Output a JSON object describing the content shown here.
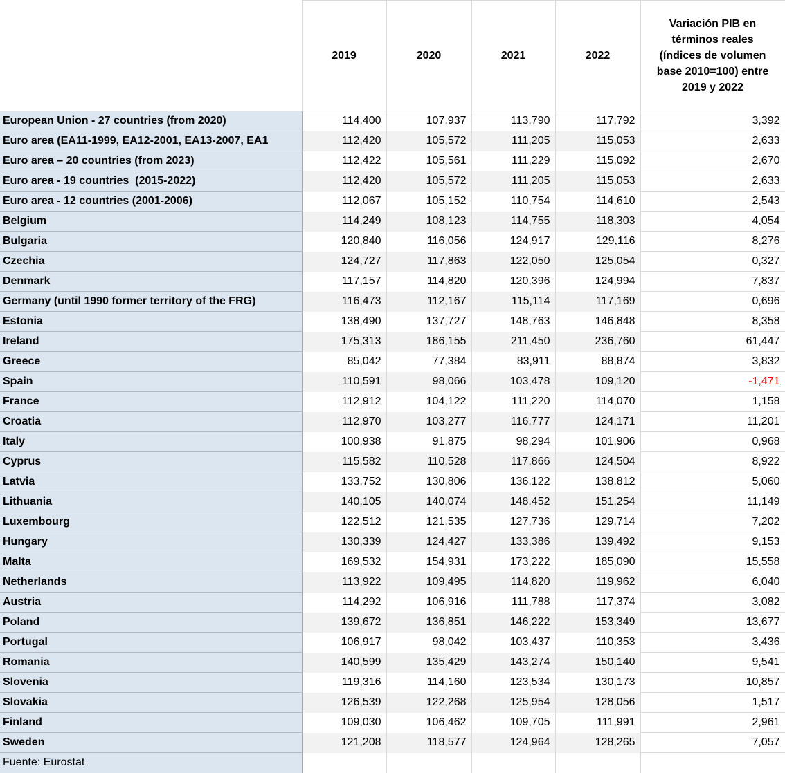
{
  "table": {
    "corner_label": "",
    "year_headers": [
      "2019",
      "2020",
      "2021",
      "2022"
    ],
    "variation_header": "Variación PIB en términos reales (índices de volumen base 2010=100) entre 2019 y 2022",
    "footer": "Fuente: Eurostat",
    "rows": [
      {
        "label": "European Union - 27 countries (from 2020)",
        "values": [
          "114,400",
          "107,937",
          "113,790",
          "117,792"
        ],
        "variation": "3,392"
      },
      {
        "label": "Euro area (EA11-1999, EA12-2001, EA13-2007, EA1",
        "values": [
          "112,420",
          "105,572",
          "111,205",
          "115,053"
        ],
        "variation": "2,633"
      },
      {
        "label": "Euro area – 20 countries (from 2023)",
        "values": [
          "112,422",
          "105,561",
          "111,229",
          "115,092"
        ],
        "variation": "2,670"
      },
      {
        "label": "Euro area - 19 countries  (2015-2022)",
        "values": [
          "112,420",
          "105,572",
          "111,205",
          "115,053"
        ],
        "variation": "2,633"
      },
      {
        "label": "Euro area - 12 countries (2001-2006)",
        "values": [
          "112,067",
          "105,152",
          "110,754",
          "114,610"
        ],
        "variation": "2,543"
      },
      {
        "label": "Belgium",
        "values": [
          "114,249",
          "108,123",
          "114,755",
          "118,303"
        ],
        "variation": "4,054"
      },
      {
        "label": "Bulgaria",
        "values": [
          "120,840",
          "116,056",
          "124,917",
          "129,116"
        ],
        "variation": "8,276"
      },
      {
        "label": "Czechia",
        "values": [
          "124,727",
          "117,863",
          "122,050",
          "125,054"
        ],
        "variation": "0,327"
      },
      {
        "label": "Denmark",
        "values": [
          "117,157",
          "114,820",
          "120,396",
          "124,994"
        ],
        "variation": "7,837"
      },
      {
        "label": "Germany (until 1990 former territory of the FRG)",
        "values": [
          "116,473",
          "112,167",
          "115,114",
          "117,169"
        ],
        "variation": "0,696"
      },
      {
        "label": "Estonia",
        "values": [
          "138,490",
          "137,727",
          "148,763",
          "146,848"
        ],
        "variation": "8,358"
      },
      {
        "label": "Ireland",
        "values": [
          "175,313",
          "186,155",
          "211,450",
          "236,760"
        ],
        "variation": "61,447"
      },
      {
        "label": "Greece",
        "values": [
          "85,042",
          "77,384",
          "83,911",
          "88,874"
        ],
        "variation": "3,832"
      },
      {
        "label": "Spain",
        "values": [
          "110,591",
          "98,066",
          "103,478",
          "109,120"
        ],
        "variation": "-1,471"
      },
      {
        "label": "France",
        "values": [
          "112,912",
          "104,122",
          "111,220",
          "114,070"
        ],
        "variation": "1,158"
      },
      {
        "label": "Croatia",
        "values": [
          "112,970",
          "103,277",
          "116,777",
          "124,171"
        ],
        "variation": "11,201"
      },
      {
        "label": "Italy",
        "values": [
          "100,938",
          "91,875",
          "98,294",
          "101,906"
        ],
        "variation": "0,968"
      },
      {
        "label": "Cyprus",
        "values": [
          "115,582",
          "110,528",
          "117,866",
          "124,504"
        ],
        "variation": "8,922"
      },
      {
        "label": "Latvia",
        "values": [
          "133,752",
          "130,806",
          "136,122",
          "138,812"
        ],
        "variation": "5,060"
      },
      {
        "label": "Lithuania",
        "values": [
          "140,105",
          "140,074",
          "148,452",
          "151,254"
        ],
        "variation": "11,149"
      },
      {
        "label": "Luxembourg",
        "values": [
          "122,512",
          "121,535",
          "127,736",
          "129,714"
        ],
        "variation": "7,202"
      },
      {
        "label": "Hungary",
        "values": [
          "130,339",
          "124,427",
          "133,386",
          "139,492"
        ],
        "variation": "9,153"
      },
      {
        "label": "Malta",
        "values": [
          "169,532",
          "154,931",
          "173,222",
          "185,090"
        ],
        "variation": "15,558"
      },
      {
        "label": "Netherlands",
        "values": [
          "113,922",
          "109,495",
          "114,820",
          "119,962"
        ],
        "variation": "6,040"
      },
      {
        "label": "Austria",
        "values": [
          "114,292",
          "106,916",
          "111,788",
          "117,374"
        ],
        "variation": "3,082"
      },
      {
        "label": "Poland",
        "values": [
          "139,672",
          "136,851",
          "146,222",
          "153,349"
        ],
        "variation": "13,677"
      },
      {
        "label": "Portugal",
        "values": [
          "106,917",
          "98,042",
          "103,437",
          "110,353"
        ],
        "variation": "3,436"
      },
      {
        "label": "Romania",
        "values": [
          "140,599",
          "135,429",
          "143,274",
          "150,140"
        ],
        "variation": "9,541"
      },
      {
        "label": "Slovenia",
        "values": [
          "119,316",
          "114,160",
          "123,534",
          "130,173"
        ],
        "variation": "10,857"
      },
      {
        "label": "Slovakia",
        "values": [
          "126,539",
          "122,268",
          "125,954",
          "128,056"
        ],
        "variation": "1,517"
      },
      {
        "label": "Finland",
        "values": [
          "109,030",
          "106,462",
          "109,705",
          "111,991"
        ],
        "variation": "2,961"
      },
      {
        "label": "Sweden",
        "values": [
          "121,208",
          "118,577",
          "124,964",
          "128,265"
        ],
        "variation": "7,057"
      }
    ]
  },
  "colors": {
    "row_label_bg": "#dce6f1",
    "band_bg": "#f2f2f2",
    "grid_light": "#d9d9d9",
    "grid_medium": "#a6a6a6",
    "negative_value": "#ff0000"
  }
}
